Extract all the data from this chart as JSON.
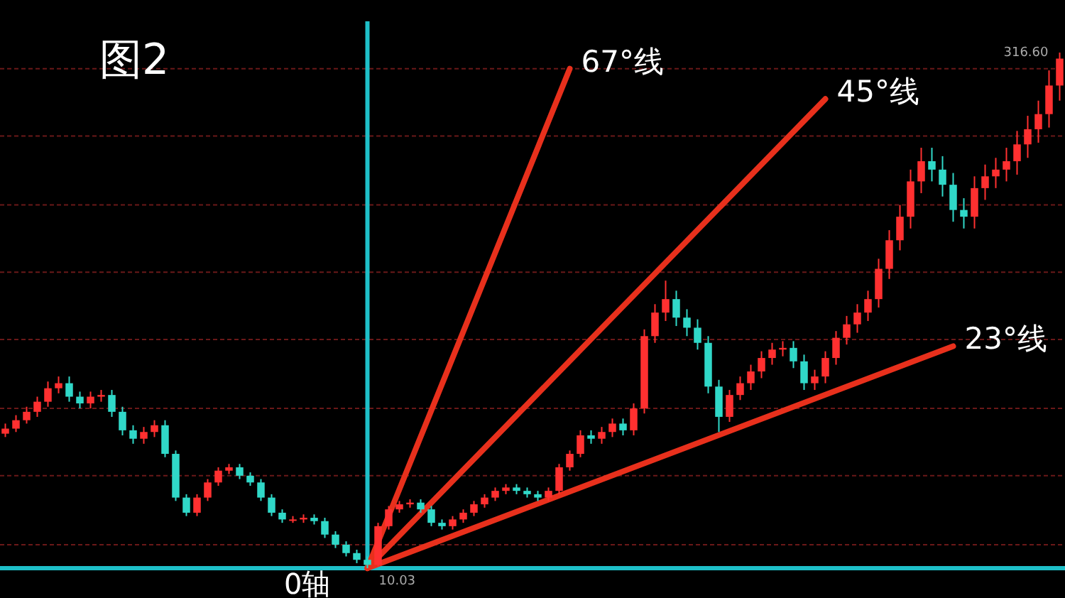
{
  "chart_data": {
    "type": "candlestick",
    "title": "图2",
    "categories": [
      null,
      null,
      null,
      null,
      null,
      null,
      null,
      null,
      null,
      null,
      null,
      null,
      null,
      null,
      null,
      null,
      null,
      null,
      null,
      null,
      null,
      null,
      null,
      null,
      null,
      null,
      null,
      null,
      null,
      null,
      null,
      null,
      null,
      null,
      null,
      null,
      null,
      null,
      null,
      null,
      null,
      null,
      null,
      null,
      null,
      null,
      null,
      null,
      null,
      null,
      null,
      null,
      null,
      null,
      null,
      null,
      null,
      null,
      null,
      null,
      null,
      null,
      null,
      null,
      null,
      null,
      null,
      null,
      null,
      null,
      null,
      null,
      null,
      null,
      null,
      null,
      null,
      null,
      null,
      null,
      null,
      null,
      null,
      null,
      null,
      null,
      null,
      null,
      null,
      null,
      null,
      null,
      null,
      null,
      null,
      null,
      null,
      null,
      null,
      null
    ],
    "ohlc": [
      [
        90,
        96,
        88,
        93
      ],
      [
        93,
        101,
        91,
        98
      ],
      [
        98,
        106,
        96,
        103
      ],
      [
        103,
        112,
        100,
        109
      ],
      [
        109,
        121,
        106,
        117
      ],
      [
        117,
        124,
        114,
        120
      ],
      [
        120,
        124,
        109,
        112
      ],
      [
        112,
        115,
        105,
        108
      ],
      [
        108,
        115,
        105,
        112
      ],
      [
        112,
        116,
        109,
        113
      ],
      [
        113,
        116,
        100,
        103
      ],
      [
        103,
        106,
        89,
        92
      ],
      [
        92,
        95,
        84,
        87
      ],
      [
        87,
        94,
        84,
        91
      ],
      [
        91,
        98,
        88,
        95
      ],
      [
        95,
        98,
        76,
        78
      ],
      [
        78,
        80,
        50,
        52
      ],
      [
        52,
        54,
        41,
        43
      ],
      [
        43,
        54,
        41,
        52
      ],
      [
        52,
        63,
        50,
        61
      ],
      [
        61,
        70,
        59,
        68
      ],
      [
        68,
        72,
        66,
        70
      ],
      [
        70,
        72,
        63,
        65
      ],
      [
        65,
        67,
        59,
        61
      ],
      [
        61,
        63,
        50,
        52
      ],
      [
        52,
        54,
        41,
        43
      ],
      [
        43,
        45,
        37,
        39
      ],
      [
        39,
        41,
        37,
        39
      ],
      [
        39,
        42,
        37,
        40
      ],
      [
        40,
        42,
        36,
        38
      ],
      [
        38,
        40,
        28,
        30
      ],
      [
        30,
        32,
        22,
        24
      ],
      [
        24,
        26,
        17,
        19
      ],
      [
        19,
        21,
        13,
        15
      ],
      [
        15,
        17,
        10.03,
        12
      ],
      [
        12,
        37,
        11,
        35
      ],
      [
        35,
        47,
        33,
        45
      ],
      [
        45,
        50,
        43,
        48
      ],
      [
        48,
        51,
        46,
        49
      ],
      [
        49,
        51,
        43,
        45
      ],
      [
        45,
        47,
        35,
        37
      ],
      [
        37,
        39,
        33,
        35
      ],
      [
        35,
        41,
        33,
        39
      ],
      [
        39,
        45,
        37,
        43
      ],
      [
        43,
        50,
        41,
        48
      ],
      [
        48,
        54,
        46,
        52
      ],
      [
        52,
        58,
        50,
        56
      ],
      [
        56,
        60,
        54,
        58
      ],
      [
        58,
        60,
        54,
        56
      ],
      [
        56,
        58,
        52,
        54
      ],
      [
        54,
        56,
        50,
        52
      ],
      [
        52,
        58,
        50,
        56
      ],
      [
        56,
        72,
        54,
        70
      ],
      [
        70,
        80,
        68,
        78
      ],
      [
        78,
        92,
        76,
        89
      ],
      [
        89,
        92,
        84,
        87
      ],
      [
        87,
        94,
        84,
        91
      ],
      [
        91,
        99,
        88,
        96
      ],
      [
        96,
        99,
        89,
        92
      ],
      [
        92,
        108,
        89,
        105
      ],
      [
        105,
        152,
        102,
        148
      ],
      [
        148,
        167,
        144,
        162
      ],
      [
        162,
        181,
        157,
        170
      ],
      [
        170,
        175,
        154,
        159
      ],
      [
        159,
        164,
        148,
        153
      ],
      [
        153,
        158,
        140,
        144
      ],
      [
        144,
        148,
        114,
        118
      ],
      [
        118,
        122,
        91,
        100
      ],
      [
        100,
        116,
        97,
        113
      ],
      [
        113,
        124,
        110,
        120
      ],
      [
        120,
        131,
        116,
        127
      ],
      [
        127,
        139,
        123,
        135
      ],
      [
        135,
        144,
        131,
        140
      ],
      [
        140,
        145,
        136,
        141
      ],
      [
        141,
        145,
        129,
        133
      ],
      [
        133,
        137,
        116,
        120
      ],
      [
        120,
        128,
        116,
        124
      ],
      [
        124,
        139,
        120,
        135
      ],
      [
        135,
        151,
        131,
        147
      ],
      [
        147,
        160,
        143,
        155
      ],
      [
        155,
        167,
        150,
        162
      ],
      [
        162,
        175,
        157,
        170
      ],
      [
        170,
        194,
        165,
        188
      ],
      [
        188,
        211,
        182,
        205
      ],
      [
        205,
        226,
        199,
        219
      ],
      [
        219,
        247,
        212,
        240
      ],
      [
        240,
        260,
        233,
        252
      ],
      [
        252,
        260,
        240,
        247
      ],
      [
        247,
        255,
        231,
        238
      ],
      [
        238,
        245,
        216,
        223
      ],
      [
        223,
        230,
        212,
        219
      ],
      [
        219,
        243,
        212,
        236
      ],
      [
        236,
        250,
        229,
        243
      ],
      [
        243,
        254,
        236,
        247
      ],
      [
        247,
        260,
        240,
        252
      ],
      [
        252,
        270,
        244,
        262
      ],
      [
        262,
        279,
        254,
        271
      ],
      [
        271,
        288,
        263,
        280
      ],
      [
        280,
        306,
        272,
        297
      ],
      [
        297,
        316.6,
        288,
        313
      ]
    ],
    "colors": [
      "#ff3030",
      "#ff3030",
      "#ff3030",
      "#ff3030",
      "#ff3030",
      "#ff3030",
      "#30d8c8",
      "#30d8c8",
      "#ff3030",
      "#ff3030",
      "#30d8c8",
      "#30d8c8",
      "#30d8c8",
      "#ff3030",
      "#ff3030",
      "#30d8c8",
      "#30d8c8",
      "#30d8c8",
      "#ff3030",
      "#ff3030",
      "#ff3030",
      "#ff3030",
      "#30d8c8",
      "#30d8c8",
      "#30d8c8",
      "#30d8c8",
      "#30d8c8",
      "#ff3030",
      "#ff3030",
      "#30d8c8",
      "#30d8c8",
      "#30d8c8",
      "#30d8c8",
      "#30d8c8",
      "#30d8c8",
      "#ff3030",
      "#ff3030",
      "#ff3030",
      "#ff3030",
      "#30d8c8",
      "#30d8c8",
      "#30d8c8",
      "#ff3030",
      "#ff3030",
      "#ff3030",
      "#ff3030",
      "#ff3030",
      "#ff3030",
      "#30d8c8",
      "#30d8c8",
      "#30d8c8",
      "#ff3030",
      "#ff3030",
      "#ff3030",
      "#ff3030",
      "#30d8c8",
      "#ff3030",
      "#ff3030",
      "#30d8c8",
      "#ff3030",
      "#ff3030",
      "#ff3030",
      "#ff3030",
      "#30d8c8",
      "#30d8c8",
      "#30d8c8",
      "#30d8c8",
      "#30d8c8",
      "#ff3030",
      "#ff3030",
      "#ff3030",
      "#ff3030",
      "#ff3030",
      "#ff3030",
      "#30d8c8",
      "#30d8c8",
      "#ff3030",
      "#ff3030",
      "#ff3030",
      "#ff3030",
      "#ff3030",
      "#ff3030",
      "#ff3030",
      "#ff3030",
      "#ff3030",
      "#ff3030",
      "#ff3030",
      "#30d8c8",
      "#30d8c8",
      "#30d8c8",
      "#30d8c8",
      "#ff3030",
      "#ff3030",
      "#ff3030",
      "#ff3030",
      "#ff3030",
      "#ff3030",
      "#ff3030",
      "#ff3030",
      "#ff3030"
    ],
    "series": [
      {
        "type": "line",
        "name": "67°线",
        "color": "#e8301c",
        "values": [
          null,
          null,
          null,
          null,
          null,
          null,
          null,
          null,
          null,
          null,
          null,
          null,
          null,
          null,
          null,
          null,
          null,
          null,
          null,
          null,
          null,
          null,
          null,
          null,
          null,
          null,
          null,
          null,
          null,
          null,
          null,
          null,
          null,
          null,
          10,
          null,
          null,
          null,
          null,
          null,
          null,
          null,
          null,
          null,
          null,
          null,
          null,
          null,
          null,
          null,
          null,
          null,
          null,
          307,
          null,
          null,
          null,
          null,
          null,
          null,
          null,
          null,
          null,
          null,
          null,
          null,
          null,
          null,
          null,
          null,
          null,
          null,
          null,
          null,
          null,
          null,
          null,
          null,
          null,
          null,
          null,
          null,
          null,
          null,
          null,
          null,
          null,
          null,
          null,
          null,
          null,
          null,
          null,
          null,
          null,
          null,
          null,
          null,
          null,
          null
        ]
      },
      {
        "type": "line",
        "name": "45°线",
        "color": "#e8301c",
        "values": [
          null,
          null,
          null,
          null,
          null,
          null,
          null,
          null,
          null,
          null,
          null,
          null,
          null,
          null,
          null,
          null,
          null,
          null,
          null,
          null,
          null,
          null,
          null,
          null,
          null,
          null,
          null,
          null,
          null,
          null,
          null,
          null,
          null,
          null,
          10,
          null,
          null,
          null,
          null,
          null,
          null,
          null,
          null,
          null,
          null,
          null,
          null,
          null,
          null,
          null,
          null,
          null,
          null,
          null,
          null,
          null,
          null,
          null,
          null,
          null,
          null,
          null,
          null,
          null,
          null,
          null,
          null,
          null,
          null,
          null,
          null,
          null,
          null,
          null,
          null,
          null,
          null,
          289,
          null,
          null,
          null,
          null,
          null,
          null,
          null,
          null,
          null,
          null,
          null,
          null,
          null,
          null,
          null,
          null,
          null,
          null,
          null,
          null,
          null,
          null
        ]
      },
      {
        "type": "line",
        "name": "23°线",
        "color": "#e8301c",
        "values": [
          null,
          null,
          null,
          null,
          null,
          null,
          null,
          null,
          null,
          null,
          null,
          null,
          null,
          null,
          null,
          null,
          null,
          null,
          null,
          null,
          null,
          null,
          null,
          null,
          null,
          null,
          null,
          null,
          null,
          null,
          null,
          null,
          null,
          null,
          10,
          null,
          null,
          null,
          null,
          null,
          null,
          null,
          null,
          null,
          null,
          null,
          null,
          null,
          null,
          null,
          null,
          null,
          null,
          null,
          null,
          null,
          null,
          null,
          null,
          null,
          null,
          null,
          null,
          null,
          null,
          null,
          null,
          null,
          null,
          null,
          null,
          null,
          null,
          null,
          null,
          null,
          null,
          null,
          null,
          null,
          null,
          null,
          null,
          null,
          null,
          null,
          null,
          null,
          null,
          142,
          null,
          null,
          null,
          null,
          null,
          null,
          null,
          null,
          null,
          null
        ]
      }
    ],
    "ref_lines": [
      {
        "axis": "y",
        "value": 10.03,
        "label": "0轴",
        "color": "#1ebfc8"
      }
    ],
    "annotations": [
      "316.60",
      {
        "text": "10.03",
        "y": 10.03
      }
    ],
    "yticks": [
      {
        "value": 24,
        "label": null
      },
      {
        "value": 65,
        "label": null
      },
      {
        "value": 105,
        "label": null
      },
      {
        "value": 146,
        "label": null
      },
      {
        "value": 186,
        "label": null
      },
      {
        "value": 226,
        "label": null
      },
      {
        "value": 267,
        "label": null
      },
      {
        "value": 307,
        "label": null
      }
    ],
    "grid": "y"
  }
}
